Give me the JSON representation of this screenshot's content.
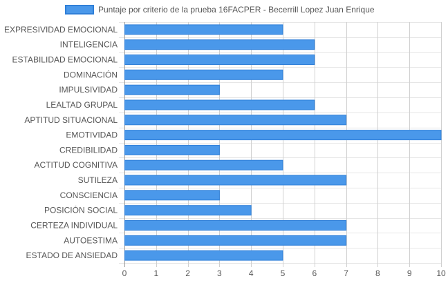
{
  "chart_data": {
    "type": "bar",
    "orientation": "horizontal",
    "categories": [
      "EXPRESIVIDAD EMOCIONAL",
      "INTELIGENCIA",
      "ESTABILIDAD EMOCIONAL",
      "DOMINACIÓN",
      "IMPULSIVIDAD",
      "LEALTAD GRUPAL",
      "APTITUD SITUACIONAL",
      "EMOTIVIDAD",
      "CREDIBILIDAD",
      "ACTITUD COGNITIVA",
      "SUTILEZA",
      "CONSCIENCIA",
      "POSICIÓN SOCIAL",
      "CERTEZA INDIVIDUAL",
      "AUTOESTIMA",
      "ESTADO DE ANSIEDAD"
    ],
    "series": [
      {
        "name": "Puntaje por criterio de la prueba 16FACPER - Becerrill Lopez Juan Enrique",
        "values": [
          5,
          6,
          6,
          5,
          3,
          6,
          7,
          10,
          3,
          5,
          7,
          3,
          4,
          7,
          7,
          5
        ],
        "color": "#4a98ea",
        "border_color": "#2f7fd8"
      }
    ],
    "xlim": [
      0,
      10
    ],
    "x_ticks": [
      "0",
      "1",
      "2",
      "3",
      "4",
      "5",
      "6",
      "7",
      "8",
      "9",
      "10"
    ],
    "grid": true,
    "legend_position": "top"
  }
}
